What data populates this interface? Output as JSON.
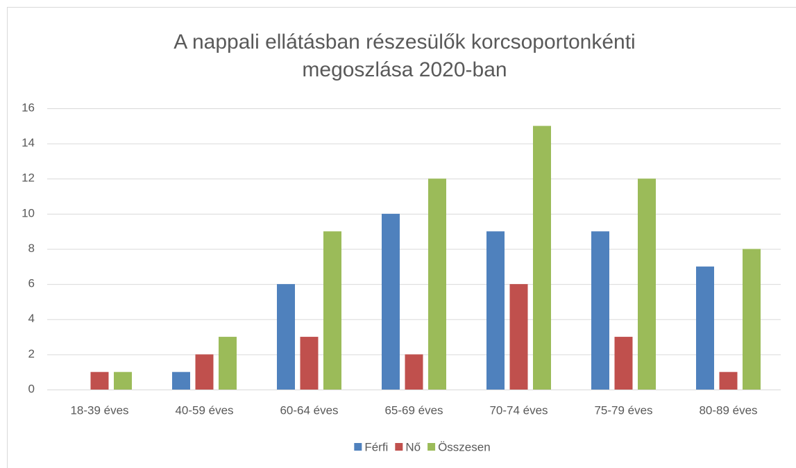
{
  "chart_data": {
    "type": "bar",
    "title": [
      "A nappali ellátásban részesülők korcsoportonkénti",
      "megoszlása 2020-ban"
    ],
    "categories": [
      "18-39 éves",
      "40-59 éves",
      "60-64 éves",
      "65-69 éves",
      "70-74 éves",
      "75-79 éves",
      "80-89 éves"
    ],
    "series": [
      {
        "name": "Férfi",
        "color": "#4f81bd",
        "values": [
          0,
          1,
          6,
          10,
          9,
          9,
          7
        ]
      },
      {
        "name": "Nő",
        "color": "#c0504d",
        "values": [
          1,
          2,
          3,
          2,
          6,
          3,
          1
        ]
      },
      {
        "name": "Összesen",
        "color": "#9bbb59",
        "values": [
          1,
          3,
          9,
          12,
          15,
          12,
          8
        ]
      }
    ],
    "ylim": [
      0,
      16
    ],
    "yticks": [
      0,
      2,
      4,
      6,
      8,
      10,
      12,
      14,
      16
    ],
    "grid": true,
    "legend": "bottom"
  }
}
